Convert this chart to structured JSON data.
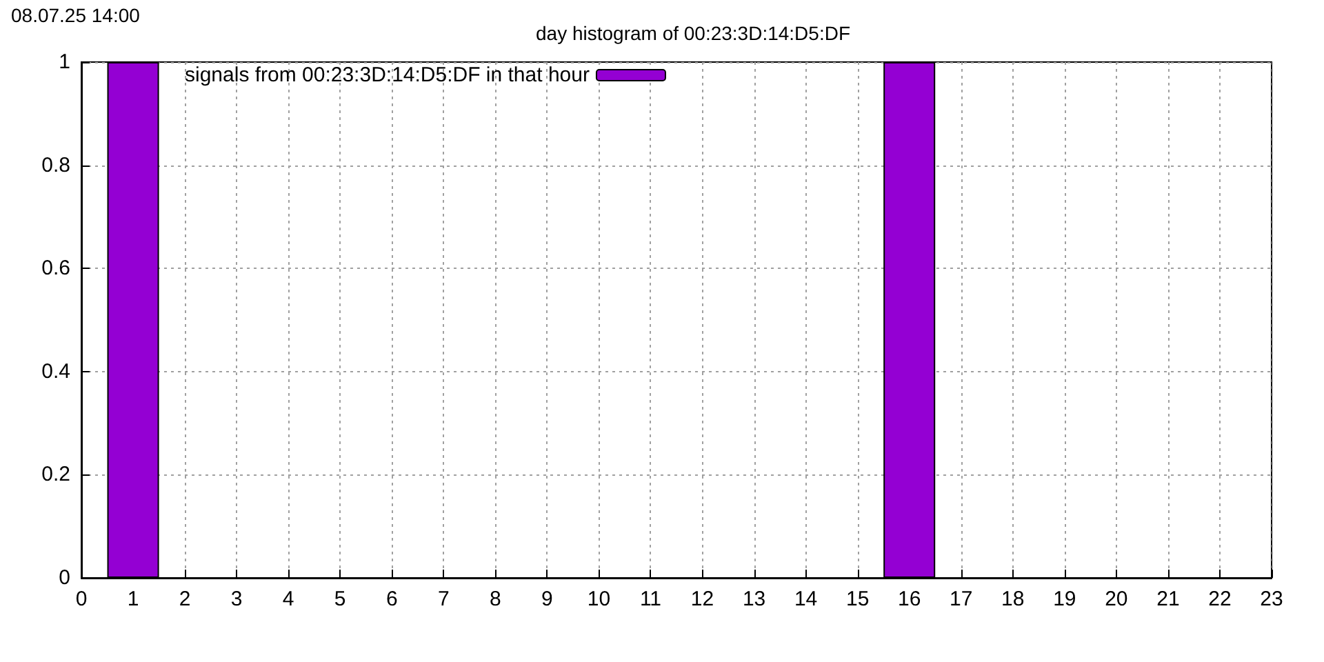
{
  "chart_data": {
    "type": "bar",
    "title": "day histogram of 00:23:3D:14:D5:DF",
    "annotations": [
      "08.07.25 14:00"
    ],
    "x": [
      1,
      16
    ],
    "series": [
      {
        "name": "signals from 00:23:3D:14:D5:DF in that hour",
        "color": "#9400d3",
        "values": [
          1,
          1
        ]
      }
    ],
    "xlim": [
      0,
      23
    ],
    "xticks": [
      0,
      1,
      2,
      3,
      4,
      5,
      6,
      7,
      8,
      9,
      10,
      11,
      12,
      13,
      14,
      15,
      16,
      17,
      18,
      19,
      20,
      21,
      22,
      23
    ],
    "ylim": [
      0,
      1
    ],
    "yticks": [
      0,
      0.2,
      0.4,
      0.6,
      0.8,
      1
    ],
    "grid": true,
    "legend": "top left"
  }
}
